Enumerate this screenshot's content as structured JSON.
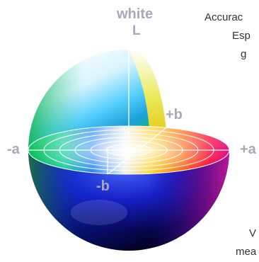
{
  "figure": {
    "title": "",
    "labels": {
      "white": "white",
      "L": "L",
      "plus_b": "+b",
      "minus_a": "-a",
      "plus_a": "+a",
      "minus_b": "-b"
    },
    "colors": {
      "label": "#a8a8b8",
      "rings": "#ffffff",
      "side_text": "#333333"
    }
  },
  "side_text": {
    "line1": "Accurac",
    "line2": "Esp",
    "line3": "g",
    "line4": "V",
    "line5": "mea"
  }
}
